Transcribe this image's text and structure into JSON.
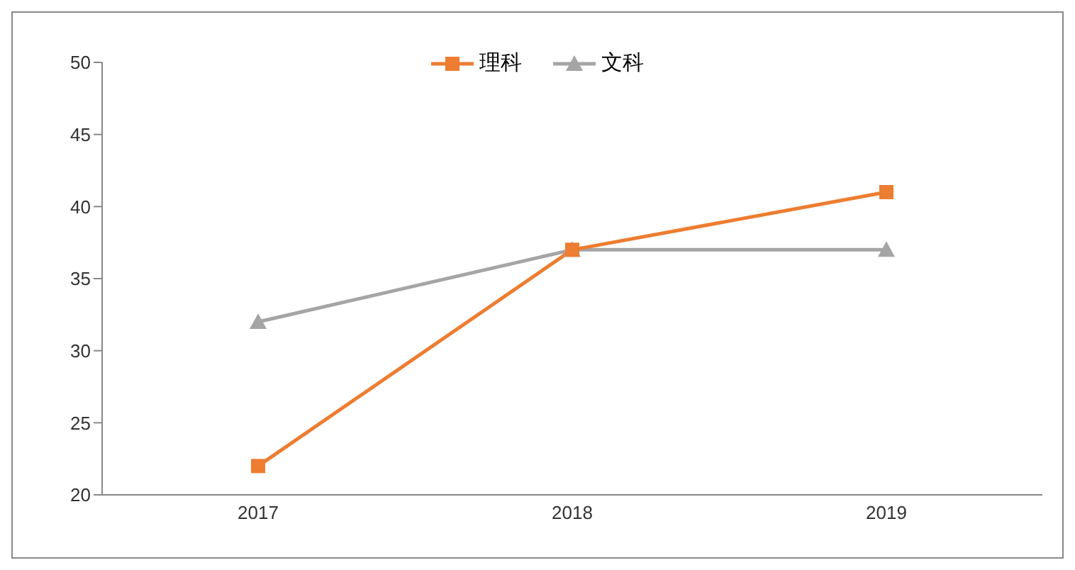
{
  "chart_data": {
    "type": "line",
    "categories": [
      "2017",
      "2018",
      "2019"
    ],
    "series": [
      {
        "name": "理科",
        "color": "#ed7d31",
        "values": [
          22,
          37,
          41
        ],
        "marker": "square"
      },
      {
        "name": "文科",
        "color": "#a5a5a5",
        "values": [
          32,
          37,
          37
        ],
        "marker": "triangle"
      }
    ],
    "ylim": [
      20,
      50
    ],
    "yticks": [
      20,
      25,
      30,
      35,
      40,
      45,
      50
    ],
    "grid": false,
    "legend": "top"
  }
}
